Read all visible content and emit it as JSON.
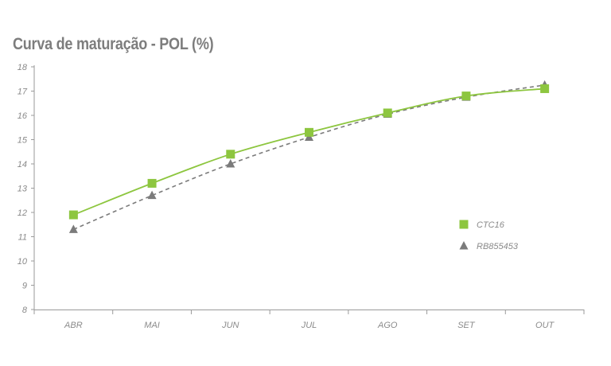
{
  "chart_data": {
    "type": "line",
    "title": "Curva de maturação - POL (%)",
    "categories": [
      "ABR",
      "MAI",
      "JUN",
      "JUL",
      "AGO",
      "SET",
      "OUT"
    ],
    "ylim": [
      8,
      18
    ],
    "yticks": [
      "8",
      "9",
      "10",
      "11",
      "12",
      "13",
      "14",
      "15",
      "16",
      "17",
      "18"
    ],
    "grid": false,
    "legend_position": "right",
    "series": [
      {
        "name": "CTC16",
        "values": [
          11.9,
          13.2,
          14.4,
          15.3,
          16.1,
          16.8,
          17.1
        ],
        "color": "#8dc63f",
        "line_style": "solid",
        "marker": "square"
      },
      {
        "name": "RB855453",
        "values": [
          11.3,
          12.7,
          14.0,
          15.1,
          16.05,
          16.75,
          17.25
        ],
        "color": "#7b7b7b",
        "line_style": "dashed",
        "marker": "triangle"
      }
    ]
  }
}
